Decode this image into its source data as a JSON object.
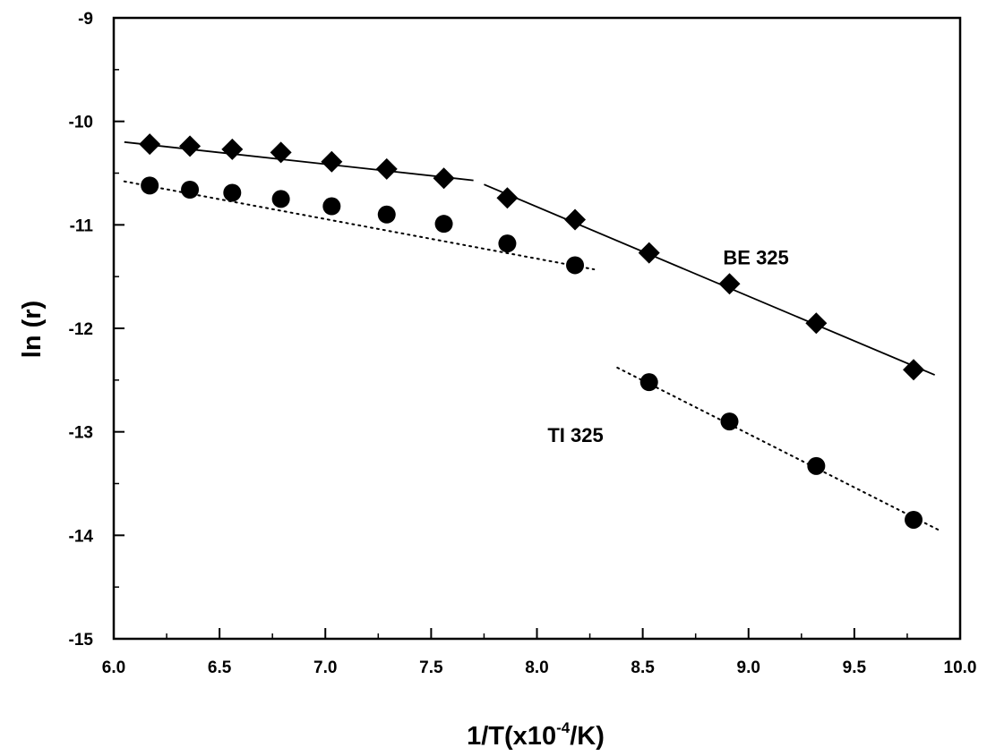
{
  "chart_data": {
    "type": "scatter",
    "title": "",
    "xlabel": {
      "prefix": "1/T(x10",
      "sup": "-4",
      "suffix": "/K)"
    },
    "ylabel": "ln (r)",
    "xlim": [
      6.0,
      10.0
    ],
    "ylim": [
      -15,
      -9
    ],
    "x_ticks": [
      "6.0",
      "6.5",
      "7.0",
      "7.5",
      "8.0",
      "8.5",
      "9.0",
      "9.5",
      "10.0"
    ],
    "y_ticks": [
      "-9",
      "-10",
      "-11",
      "-12",
      "-13",
      "-14",
      "-15"
    ],
    "grid": false,
    "series": [
      {
        "name": "BE 325",
        "marker": "diamond",
        "x": [
          6.17,
          6.36,
          6.56,
          6.79,
          7.03,
          7.29,
          7.56,
          7.86,
          8.18,
          8.53,
          8.91,
          9.32,
          9.78
        ],
        "y": [
          -10.22,
          -10.24,
          -10.27,
          -10.3,
          -10.39,
          -10.46,
          -10.55,
          -10.74,
          -10.95,
          -11.27,
          -11.57,
          -11.95,
          -12.4
        ]
      },
      {
        "name": "TI 325",
        "marker": "circle",
        "x": [
          6.17,
          6.36,
          6.56,
          6.79,
          7.03,
          7.29,
          7.56,
          7.86,
          8.18,
          8.53,
          8.91,
          9.32,
          9.78
        ],
        "y": [
          -10.62,
          -10.66,
          -10.69,
          -10.75,
          -10.82,
          -10.9,
          -10.99,
          -11.18,
          -11.39,
          -12.52,
          -12.9,
          -13.33,
          -13.85
        ]
      }
    ],
    "fit_lines": [
      {
        "series": "BE 325",
        "style": "solid",
        "x": [
          6.05,
          7.7
        ],
        "y": [
          -10.2,
          -10.57
        ]
      },
      {
        "series": "BE 325",
        "style": "solid",
        "x": [
          7.75,
          9.88
        ],
        "y": [
          -10.61,
          -12.45
        ]
      },
      {
        "series": "TI 325",
        "style": "dotted",
        "x": [
          6.05,
          8.27
        ],
        "y": [
          -10.58,
          -11.43
        ]
      },
      {
        "series": "TI 325",
        "style": "dotted",
        "x": [
          8.38,
          9.9
        ],
        "y": [
          -12.38,
          -13.95
        ]
      }
    ],
    "annotations": [
      {
        "text": "BE 325",
        "x": 8.88,
        "y": -11.38
      },
      {
        "text": "TI 325",
        "x": 8.05,
        "y": -13.1
      }
    ]
  }
}
